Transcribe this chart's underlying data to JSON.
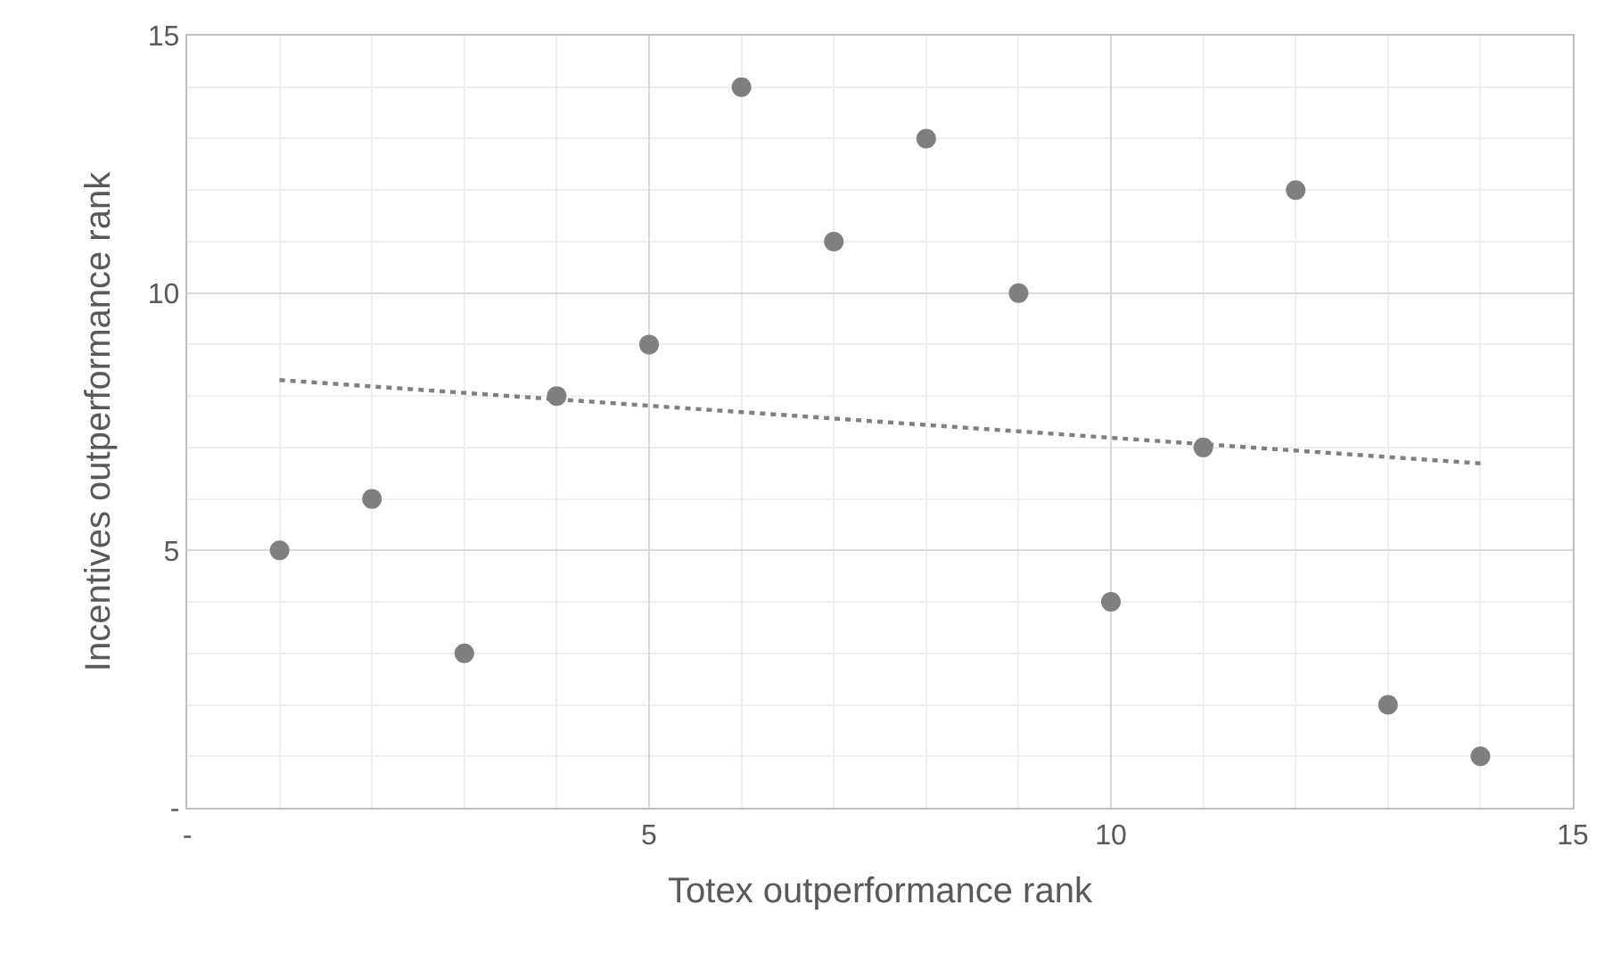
{
  "chart_data": {
    "type": "scatter",
    "xlabel": "Totex outperformance rank",
    "ylabel": "Incentives outperformance rank",
    "xlim": [
      0,
      15
    ],
    "ylim": [
      0,
      15
    ],
    "xticks": [
      {
        "value": 0,
        "label": "-"
      },
      {
        "value": 1,
        "label": null
      },
      {
        "value": 2,
        "label": null
      },
      {
        "value": 3,
        "label": null
      },
      {
        "value": 4,
        "label": null
      },
      5,
      {
        "value": 6,
        "label": null
      },
      {
        "value": 7,
        "label": null
      },
      {
        "value": 8,
        "label": null
      },
      {
        "value": 9,
        "label": null
      },
      10,
      {
        "value": 11,
        "label": null
      },
      {
        "value": 12,
        "label": null
      },
      {
        "value": 13,
        "label": null
      },
      {
        "value": 14,
        "label": null
      },
      15
    ],
    "yticks": [
      {
        "value": 0,
        "label": "-"
      },
      {
        "value": 1,
        "label": null
      },
      {
        "value": 2,
        "label": null
      },
      {
        "value": 3,
        "label": null
      },
      {
        "value": 4,
        "label": null
      },
      5,
      {
        "value": 6,
        "label": null
      },
      {
        "value": 7,
        "label": null
      },
      {
        "value": 8,
        "label": null
      },
      {
        "value": 9,
        "label": null
      },
      10,
      {
        "value": 11,
        "label": null
      },
      {
        "value": 12,
        "label": null
      },
      {
        "value": 13,
        "label": null
      },
      {
        "value": 14,
        "label": null
      },
      15
    ],
    "grid": true,
    "series": [
      {
        "color": "#7f7f7f",
        "marker": "circle",
        "x": [
          1,
          2,
          3,
          4,
          5,
          6,
          7,
          8,
          9,
          10,
          11,
          12,
          13,
          14
        ],
        "values": [
          5,
          6,
          3,
          8,
          9,
          14,
          11,
          13,
          10,
          4,
          7,
          12,
          2,
          1
        ]
      },
      {
        "type": "line",
        "color": "#7f7f7f",
        "line_style": "dotted",
        "marker": "none",
        "x": [
          1,
          14
        ],
        "values": [
          8.31,
          6.69
        ]
      }
    ]
  }
}
